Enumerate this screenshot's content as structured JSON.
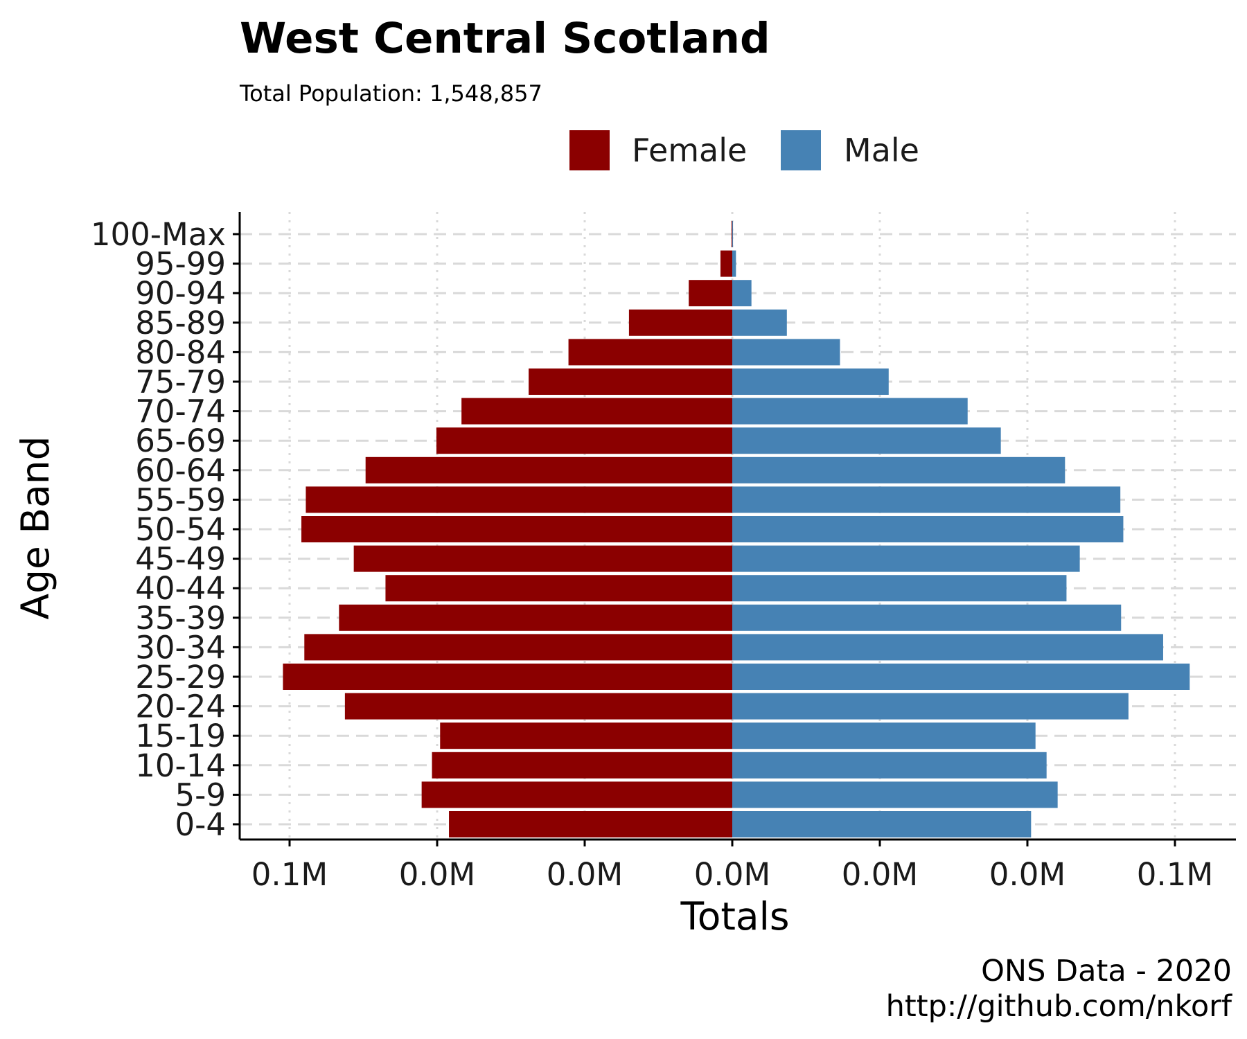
{
  "chart_data": {
    "type": "bar",
    "orientation": "horizontal",
    "title": "West Central Scotland",
    "subtitle": "Total Population:  1,548,857",
    "xlabel": "Totals",
    "ylabel": "Age Band",
    "caption_lines": [
      "ONS Data - 2020",
      "http://github.com/nkorf"
    ],
    "legend": {
      "placement": "top",
      "entries": [
        "Female",
        "Male"
      ]
    },
    "colors": {
      "Female": "#8b0000",
      "Male": "#4682b4",
      "grid": "#d9d9d9",
      "axis": "#000000"
    },
    "grid": true,
    "categories": [
      "0-4",
      "5-9",
      "10-14",
      "15-19",
      "20-24",
      "25-29",
      "30-34",
      "35-39",
      "40-44",
      "45-49",
      "50-54",
      "55-59",
      "60-64",
      "65-69",
      "70-74",
      "75-79",
      "80-84",
      "85-89",
      "90-94",
      "95-99",
      "100-Max"
    ],
    "series": [
      {
        "name": "Female",
        "values": [
          38400,
          42100,
          40700,
          39600,
          52500,
          60900,
          58000,
          53300,
          47000,
          51300,
          58400,
          57800,
          49700,
          40100,
          36700,
          27600,
          22200,
          14000,
          5900,
          1600,
          100
        ]
      },
      {
        "name": "Male",
        "values": [
          40500,
          44100,
          42600,
          41100,
          53700,
          62000,
          58400,
          52700,
          45300,
          47100,
          53000,
          52600,
          45100,
          36400,
          31900,
          21200,
          14600,
          7400,
          2600,
          500,
          100
        ]
      }
    ],
    "xlim": [
      -60000,
      60000
    ],
    "xticks": [
      -60000,
      -40000,
      -20000,
      0,
      20000,
      40000,
      60000
    ],
    "xtick_labels": [
      "0.1M",
      "0.0M",
      "0.0M",
      "0.0M",
      "0.0M",
      "0.0M",
      "0.1M"
    ]
  }
}
